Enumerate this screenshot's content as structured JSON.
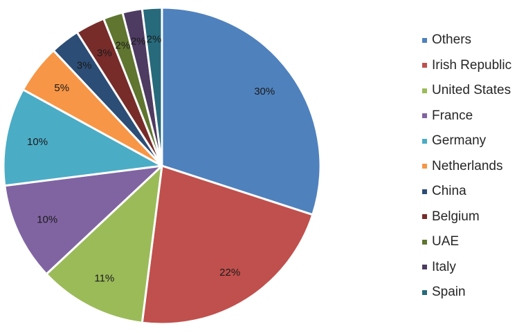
{
  "chart_data": {
    "type": "pie",
    "title": "",
    "slices": [
      {
        "label": "Others",
        "value": 30,
        "display": "30%",
        "color": "#4f81bd"
      },
      {
        "label": "Irish Republic",
        "value": 22,
        "display": "22%",
        "color": "#c0504d"
      },
      {
        "label": "United States",
        "value": 11,
        "display": "11%",
        "color": "#9bbb59"
      },
      {
        "label": "France",
        "value": 10,
        "display": "10%",
        "color": "#8064a2"
      },
      {
        "label": "Germany",
        "value": 10,
        "display": "10%",
        "color": "#4bacc6"
      },
      {
        "label": "Netherlands",
        "value": 5,
        "display": "5%",
        "color": "#f79646"
      },
      {
        "label": "China",
        "value": 3,
        "display": "3%",
        "color": "#2c4d75"
      },
      {
        "label": "Belgium",
        "value": 3,
        "display": "3%",
        "color": "#772c2a"
      },
      {
        "label": "UAE",
        "value": 2,
        "display": "2%",
        "color": "#5f7530"
      },
      {
        "label": "Italy",
        "value": 2,
        "display": "2%",
        "color": "#4d3b62"
      },
      {
        "label": "Spain",
        "value": 2,
        "display": "2%",
        "color": "#276a7c"
      }
    ],
    "start_angle": "12 o'clock",
    "direction": "clockwise",
    "legend_position": "right"
  }
}
